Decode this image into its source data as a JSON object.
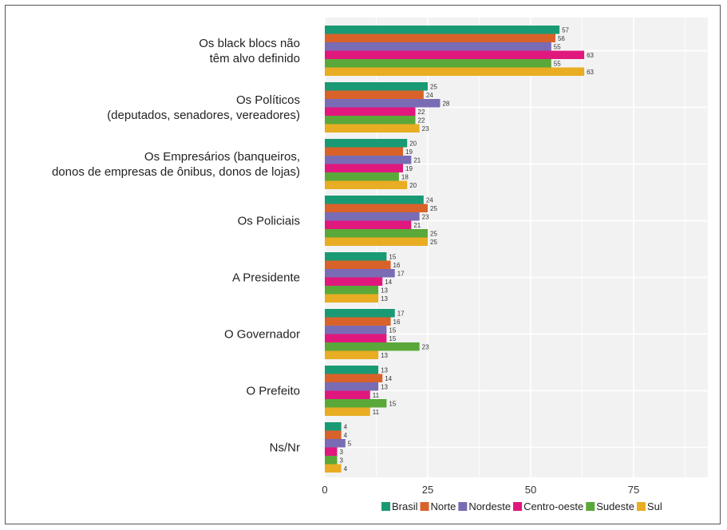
{
  "chart_data": {
    "type": "bar",
    "orientation": "horizontal",
    "categories": [
      [
        "Os black blocs não",
        "têm alvo definido"
      ],
      [
        "Os Políticos",
        "(deputados, senadores, vereadores)"
      ],
      [
        "Os Empresários (banqueiros,",
        "donos de empresas de ônibus, donos de lojas)"
      ],
      [
        "Os Policiais"
      ],
      [
        "A Presidente"
      ],
      [
        "O Governador"
      ],
      [
        "O Prefeito"
      ],
      [
        "Ns/Nr"
      ]
    ],
    "series": [
      {
        "name": "Brasil",
        "color": "#1a9a74",
        "values": [
          57,
          25,
          20,
          24,
          15,
          17,
          13,
          4
        ]
      },
      {
        "name": "Norte",
        "color": "#d9622b",
        "values": [
          56,
          24,
          19,
          25,
          16,
          16,
          14,
          4
        ]
      },
      {
        "name": "Nordeste",
        "color": "#7a6bb5",
        "values": [
          55,
          28,
          21,
          23,
          17,
          15,
          13,
          5
        ]
      },
      {
        "name": "Centro-oeste",
        "color": "#e0187e",
        "values": [
          63,
          22,
          19,
          21,
          14,
          15,
          11,
          3
        ]
      },
      {
        "name": "Sudeste",
        "color": "#5aa83a",
        "values": [
          55,
          22,
          18,
          25,
          13,
          23,
          15,
          3
        ]
      },
      {
        "name": "Sul",
        "color": "#e8ad22",
        "values": [
          63,
          23,
          20,
          25,
          13,
          13,
          11,
          4
        ]
      }
    ],
    "xticks": [
      "0",
      "25",
      "50",
      "75"
    ],
    "xlim": [
      0,
      90
    ],
    "grid": true,
    "legend_position": "bottom-right"
  }
}
